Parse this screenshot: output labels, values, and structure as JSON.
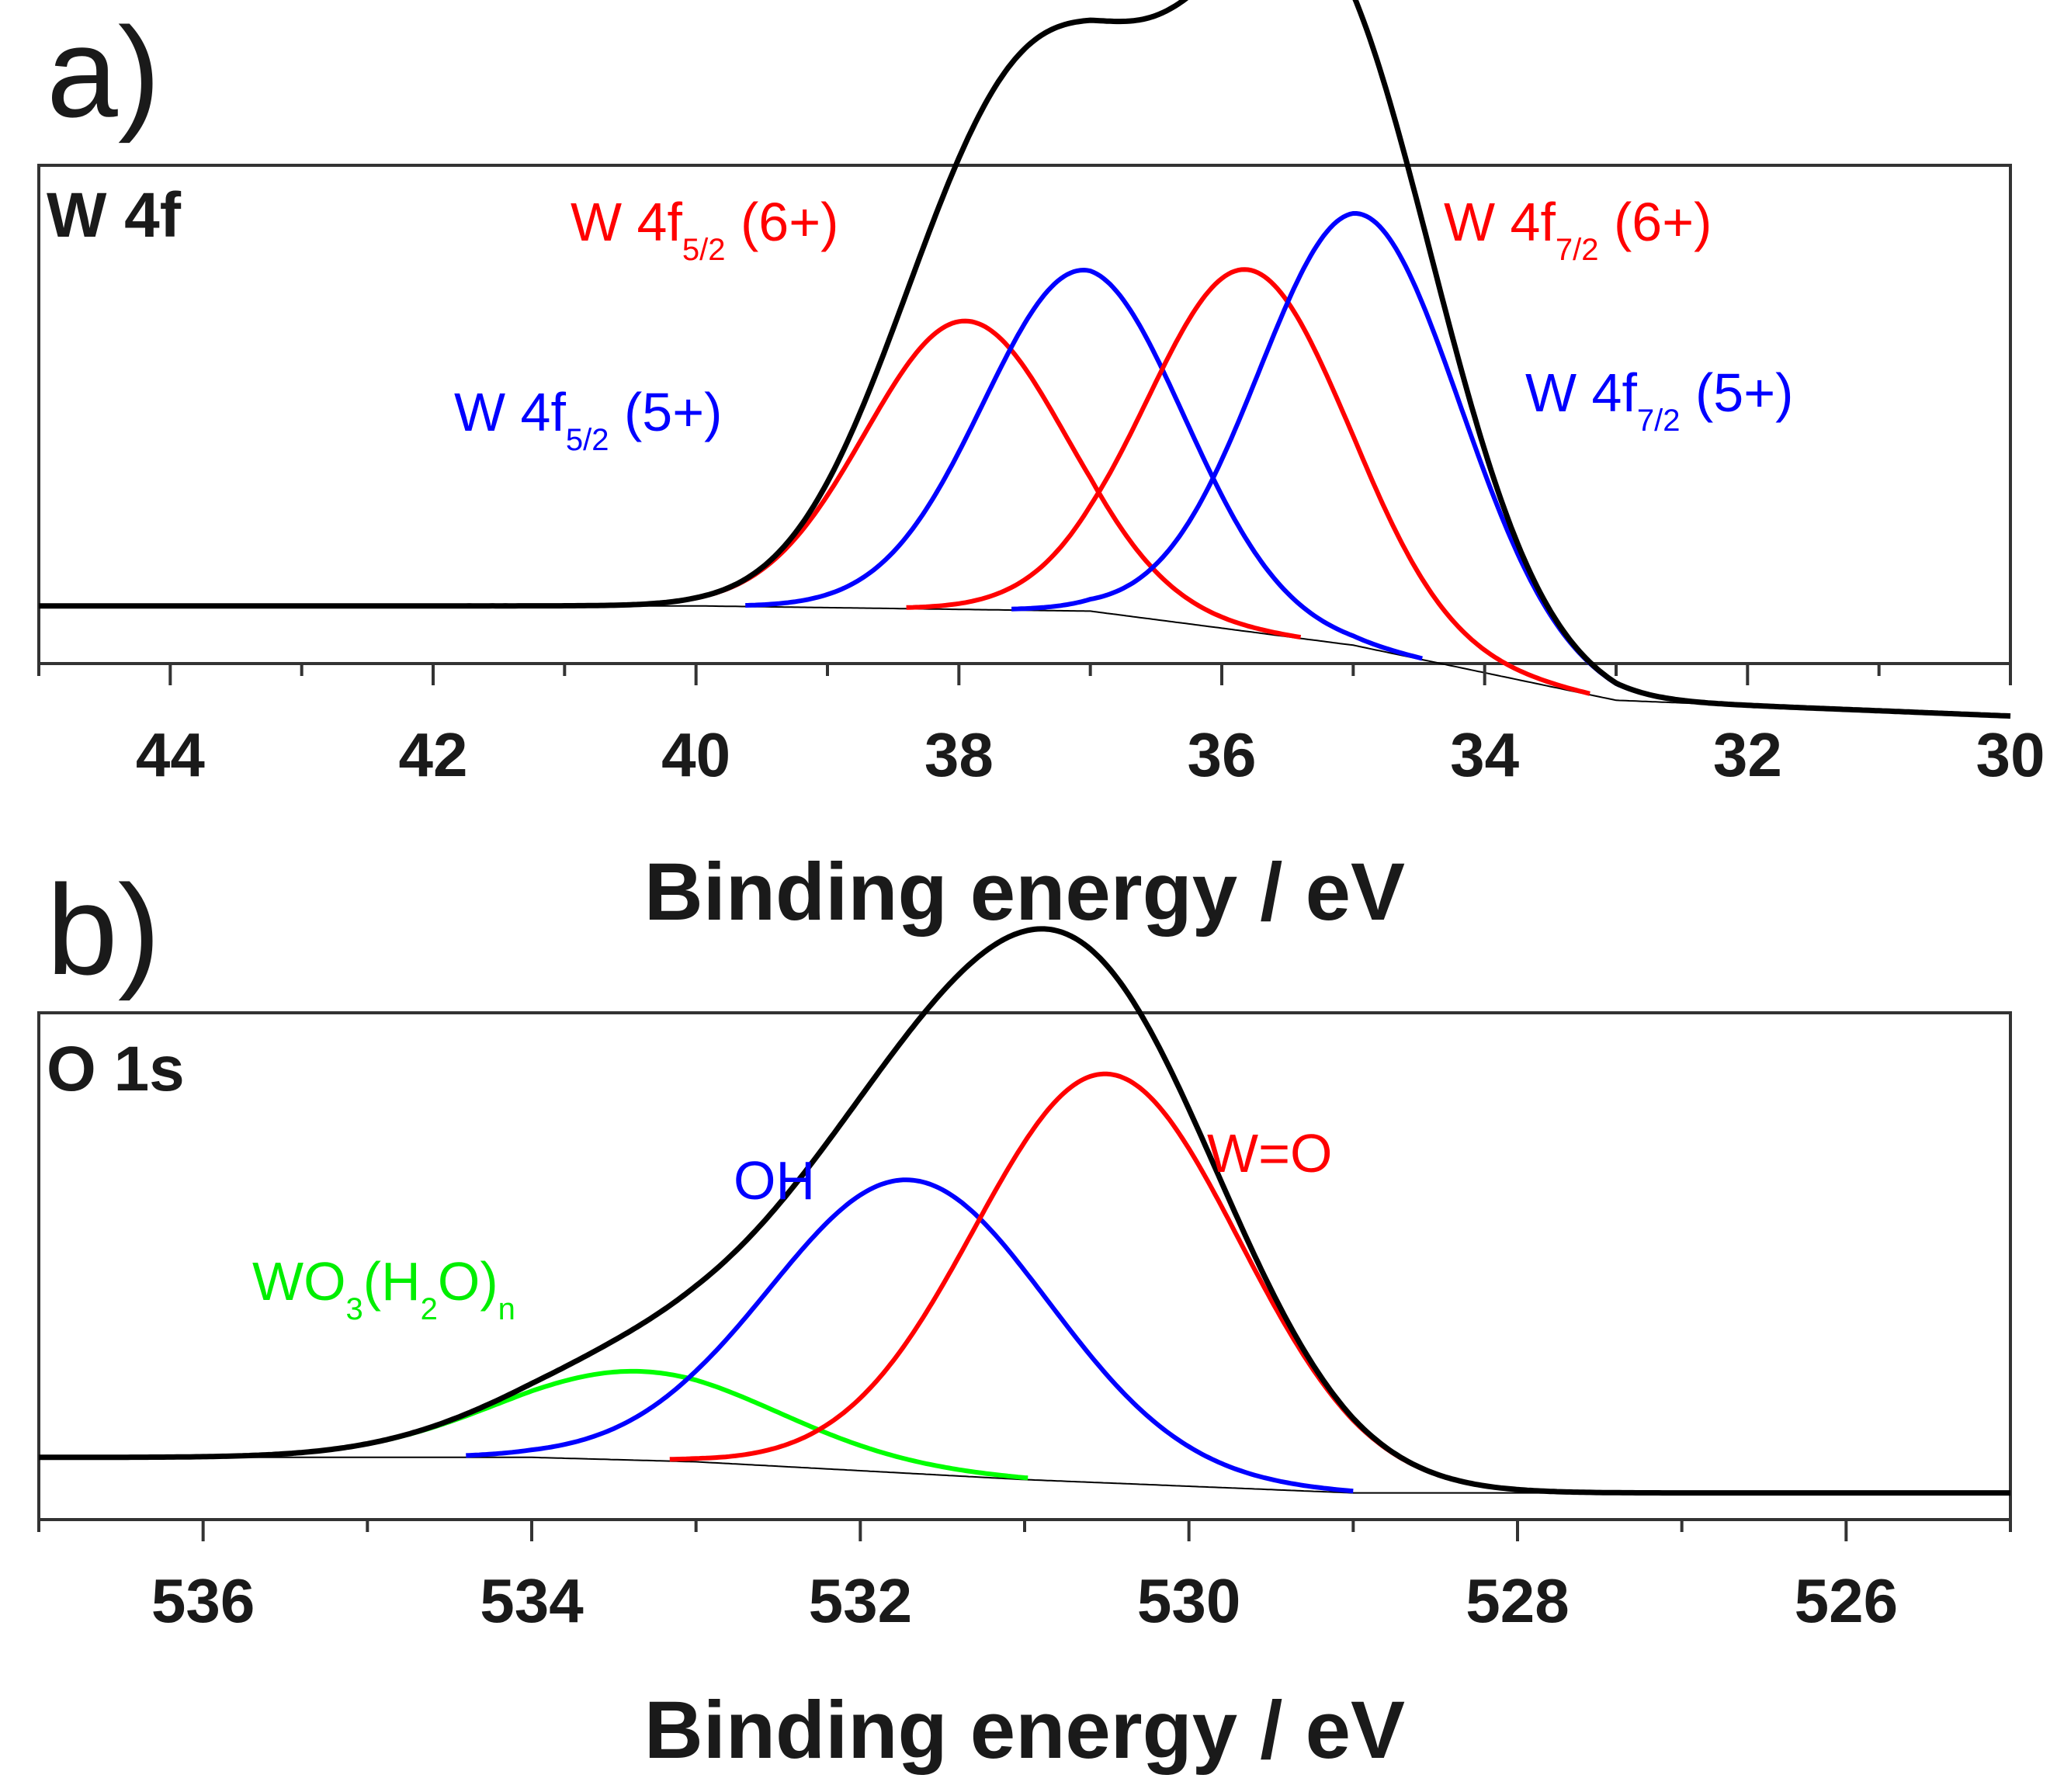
{
  "chart_data": [
    {
      "panel": "a)",
      "corner_label": "W 4f",
      "type": "line",
      "xlabel": "Binding energy / eV",
      "xlim": [
        45,
        30
      ],
      "xticks": [
        44,
        42,
        40,
        38,
        36,
        34,
        32,
        30
      ],
      "x_reversed": true,
      "y_axis_labels": false,
      "ylim": [
        -0.22,
        1.68
      ],
      "background": {
        "name": "Background",
        "color": "#000000",
        "points": [
          [
            45,
            0.0
          ],
          [
            40,
            0.0
          ],
          [
            37,
            -0.02
          ],
          [
            35,
            -0.15
          ],
          [
            33,
            -0.36
          ],
          [
            30,
            -0.42
          ]
        ]
      },
      "envelope_color": "#000000",
      "components": [
        {
          "label": "W 4f5/2 (6+)",
          "color": "#ff0000",
          "center": 37.95,
          "height": 1.1,
          "fwhm": 1.8
        },
        {
          "label": "W 4f5/2 (5+)",
          "color": "#0000ff",
          "center": 37.05,
          "height": 1.3,
          "fwhm": 1.8
        },
        {
          "label": "W 4f7/2 (6+)",
          "color": "#ff0000",
          "center": 35.8,
          "height": 1.38,
          "fwhm": 1.8
        },
        {
          "label": "W 4f7/2 (5+)",
          "color": "#0000ff",
          "center": 34.95,
          "height": 1.65,
          "fwhm": 1.8
        }
      ]
    },
    {
      "panel": "b)",
      "corner_label": "O 1s",
      "type": "line",
      "xlabel": "Binding energy / eV",
      "xlim": [
        537,
        525
      ],
      "xticks": [
        536,
        534,
        532,
        530,
        528,
        526
      ],
      "x_reversed": true,
      "y_axis_labels": false,
      "ylim": [
        -0.14,
        1.0
      ],
      "background": {
        "name": "Background",
        "color": "#000000",
        "points": [
          [
            537,
            0.0
          ],
          [
            534,
            0.0
          ],
          [
            533,
            -0.01
          ],
          [
            531,
            -0.05
          ],
          [
            529,
            -0.08
          ],
          [
            525,
            -0.08
          ]
        ]
      },
      "envelope_color": "#000000",
      "components": [
        {
          "label": "WO3(H2O)n",
          "color": "#00ff00",
          "center": 533.35,
          "height": 0.2,
          "fwhm": 2.0
        },
        {
          "label": "OH",
          "color": "#0000ff",
          "center": 531.7,
          "height": 0.66,
          "fwhm": 2.0
        },
        {
          "label": "W=O",
          "color": "#ff0000",
          "center": 530.5,
          "height": 0.92,
          "fwhm": 1.9
        }
      ]
    }
  ]
}
